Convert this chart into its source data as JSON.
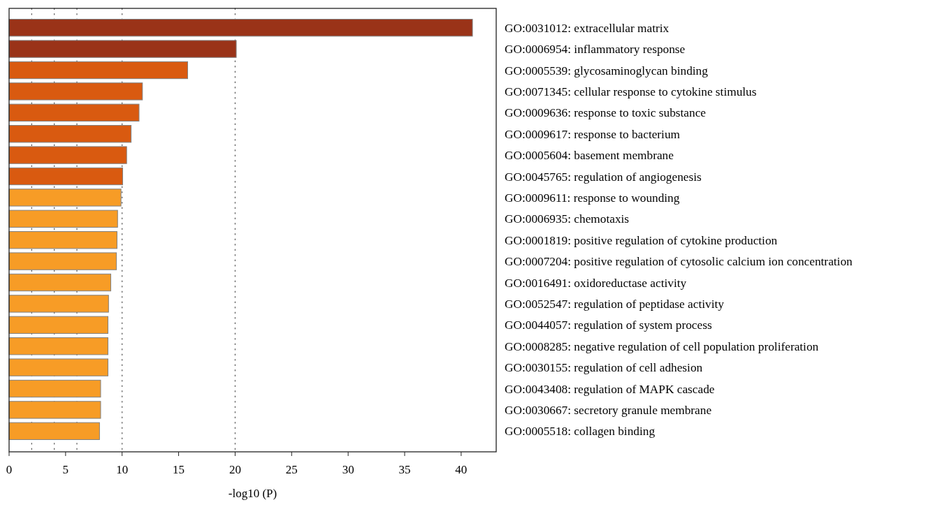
{
  "chart_data": {
    "type": "bar",
    "orientation": "horizontal",
    "xlabel": "-log10 (P)",
    "categories": [
      "GO:0031012: extracellular matrix",
      "GO:0006954: inflammatory response",
      "GO:0005539: glycosaminoglycan binding",
      "GO:0071345: cellular response to cytokine stimulus",
      "GO:0009636: response to toxic substance",
      "GO:0009617: response to bacterium",
      "GO:0005604: basement membrane",
      "GO:0045765: regulation of angiogenesis",
      "GO:0009611: response to wounding",
      "GO:0006935: chemotaxis",
      "GO:0001819: positive regulation of cytokine production",
      "GO:0007204: positive regulation of cytosolic calcium ion concentration",
      "GO:0016491: oxidoreductase activity",
      "GO:0052547: regulation of peptidase activity",
      "GO:0044057: regulation of system process",
      "GO:0008285: negative regulation of cell population proliferation",
      "GO:0030155: regulation of cell adhesion",
      "GO:0043408: regulation of MAPK cascade",
      "GO:0030667: secretory granule membrane",
      "GO:0005518: collagen binding"
    ],
    "values": [
      41.0,
      20.1,
      15.8,
      11.8,
      11.5,
      10.8,
      10.4,
      10.05,
      9.9,
      9.6,
      9.55,
      9.5,
      9.0,
      8.8,
      8.75,
      8.75,
      8.75,
      8.1,
      8.1,
      8.0
    ],
    "colors": [
      "#9a3318",
      "#9a3318",
      "#d95a10",
      "#d95a10",
      "#d95a10",
      "#d95a10",
      "#d95a10",
      "#d95a10",
      "#f79c26",
      "#f79c26",
      "#f79c26",
      "#f79c26",
      "#f79c26",
      "#f79c26",
      "#f79c26",
      "#f79c26",
      "#f79c26",
      "#f79c26",
      "#f79c26",
      "#f79c26"
    ],
    "xlim": [
      0,
      43.1
    ],
    "xticks": [
      0,
      5,
      10,
      15,
      20,
      25,
      30,
      35,
      40
    ],
    "ref_lines": [
      {
        "axis": "x",
        "value": 2,
        "line_style": "dotted"
      },
      {
        "axis": "x",
        "value": 4,
        "line_style": "dotted"
      },
      {
        "axis": "x",
        "value": 6,
        "line_style": "dotted"
      },
      {
        "axis": "x",
        "value": 10,
        "line_style": "dotted"
      },
      {
        "axis": "x",
        "value": 20,
        "line_style": "dotted"
      }
    ]
  }
}
